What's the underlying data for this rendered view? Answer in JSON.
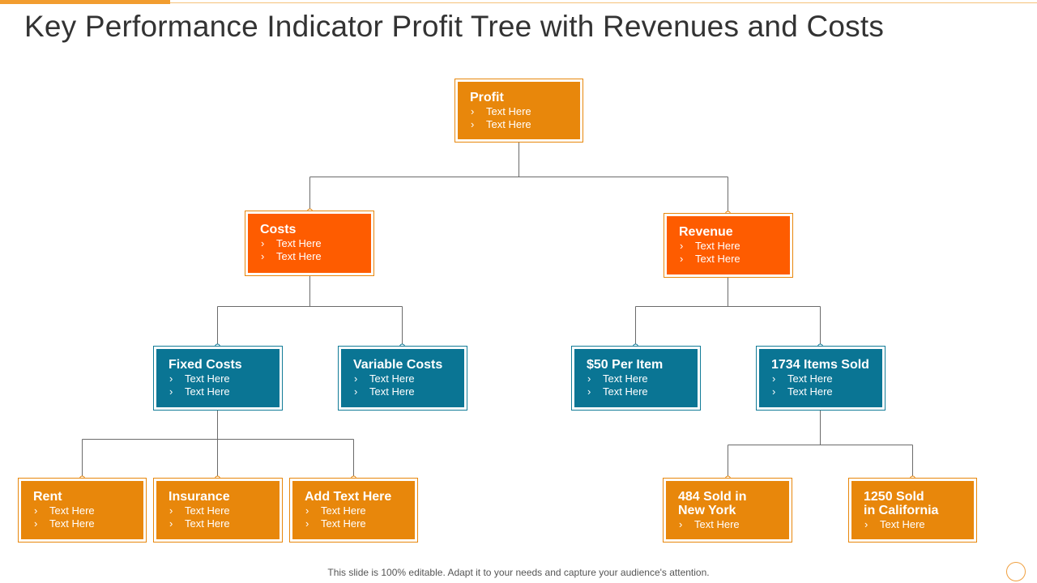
{
  "title": "Key Performance Indicator Profit Tree with Revenues and Costs",
  "bullet_glyph": "›",
  "nodes": {
    "profit": {
      "title": "Profit",
      "items": [
        "Text Here",
        "Text Here"
      ]
    },
    "costs": {
      "title": "Costs",
      "items": [
        "Text Here",
        "Text Here"
      ]
    },
    "revenue": {
      "title": "Revenue",
      "items": [
        "Text Here",
        "Text Here"
      ]
    },
    "fixed_costs": {
      "title": "Fixed Costs",
      "items": [
        "Text Here",
        "Text Here"
      ]
    },
    "variable_costs": {
      "title": "Variable Costs",
      "items": [
        "Text Here",
        "Text Here"
      ]
    },
    "per_item": {
      "title": "$50 Per Item",
      "items": [
        "Text Here",
        "Text Here"
      ]
    },
    "items_sold": {
      "title": "1734 Items Sold",
      "items": [
        "Text Here",
        "Text Here"
      ]
    },
    "rent": {
      "title": "Rent",
      "items": [
        "Text Here",
        "Text Here"
      ]
    },
    "insurance": {
      "title": "Insurance",
      "items": [
        "Text Here",
        "Text Here"
      ]
    },
    "add_text": {
      "title": "Add Text Here",
      "items": [
        "Text Here",
        "Text Here"
      ]
    },
    "new_york": {
      "title": "484 Sold in\nNew York",
      "items": [
        "Text Here"
      ]
    },
    "california": {
      "title": "1250 Sold\nin California",
      "items": [
        "Text Here"
      ]
    }
  },
  "footnote": "This slide is 100% editable. Adapt it to your needs and capture your audience's attention.",
  "colors": {
    "gold": "#e8870b",
    "red_orange": "#fe5c00",
    "teal": "#0a7594",
    "connector": "#6b6b6b"
  }
}
